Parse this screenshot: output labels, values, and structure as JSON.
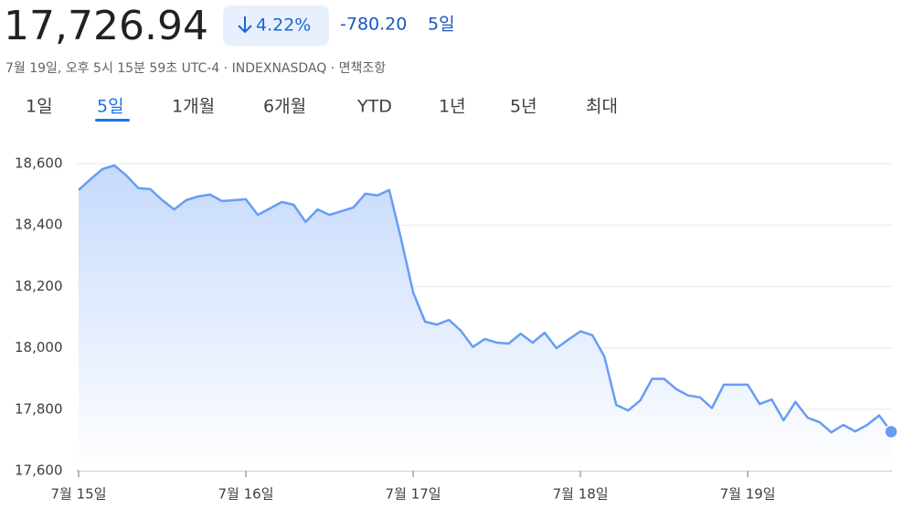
{
  "header": {
    "price": "17,726.94",
    "change_percent": "4.22%",
    "change": "-780.20",
    "period": "5일",
    "subtitle": "7월 19일, 오후 5시 15분 59초 UTC-4 · INDEXNASDAQ · 면책조항"
  },
  "tabs": [
    "1일",
    "5일",
    "1개월",
    "6개월",
    "YTD",
    "1년",
    "5년",
    "최대"
  ],
  "chart_data": {
    "type": "line",
    "categories": [
      "7월 15일",
      null,
      null,
      null,
      null,
      null,
      null,
      null,
      null,
      null,
      null,
      null,
      null,
      null,
      "7월 16일",
      null,
      null,
      null,
      null,
      null,
      null,
      null,
      null,
      null,
      null,
      null,
      null,
      null,
      "7월 17일",
      null,
      null,
      null,
      null,
      null,
      null,
      null,
      null,
      null,
      null,
      null,
      null,
      null,
      "7월 18일",
      null,
      null,
      null,
      null,
      null,
      null,
      null,
      null,
      null,
      null,
      null,
      null,
      null,
      "7월 19일",
      null,
      null,
      null,
      null,
      null,
      null,
      null,
      null,
      null,
      null,
      null,
      null
    ],
    "values": [
      18514,
      18549,
      18582,
      18594,
      18561,
      18520,
      18517,
      18481,
      18451,
      18481,
      18493,
      18499,
      18478,
      18481,
      18484,
      18433,
      18454,
      18475,
      18466,
      18410,
      18451,
      18433,
      18445,
      18457,
      18502,
      18496,
      18514,
      18353,
      18180,
      18085,
      18076,
      18091,
      18055,
      18003,
      18029,
      18017,
      18014,
      18046,
      18017,
      18049,
      17999,
      18027,
      18054,
      18041,
      17972,
      17814,
      17796,
      17829,
      17899,
      17899,
      17866,
      17845,
      17839,
      17804,
      17880,
      17880,
      17880,
      17817,
      17832,
      17764,
      17824,
      17773,
      17758,
      17725,
      17749,
      17728,
      17749,
      17780,
      17726.94
    ],
    "color": "#669df6",
    "ylim": [
      17600,
      18600
    ],
    "yticks": [
      {
        "value": 17600,
        "label": "17,600"
      },
      {
        "value": 17800,
        "label": "17,800"
      },
      {
        "value": 18000,
        "label": "18,000"
      },
      {
        "value": 18200,
        "label": "18,200"
      },
      {
        "value": 18400,
        "label": "18,400"
      },
      {
        "value": 18600,
        "label": "18,600"
      }
    ],
    "grid": true
  }
}
